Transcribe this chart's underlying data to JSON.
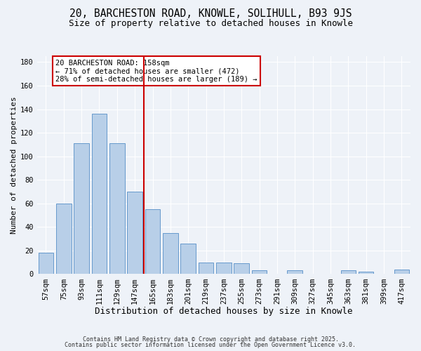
{
  "title": "20, BARCHESTON ROAD, KNOWLE, SOLIHULL, B93 9JS",
  "subtitle": "Size of property relative to detached houses in Knowle",
  "xlabel": "Distribution of detached houses by size in Knowle",
  "ylabel": "Number of detached properties",
  "categories": [
    "57sqm",
    "75sqm",
    "93sqm",
    "111sqm",
    "129sqm",
    "147sqm",
    "165sqm",
    "183sqm",
    "201sqm",
    "219sqm",
    "237sqm",
    "255sqm",
    "273sqm",
    "291sqm",
    "309sqm",
    "327sqm",
    "345sqm",
    "363sqm",
    "381sqm",
    "399sqm",
    "417sqm"
  ],
  "values": [
    18,
    60,
    111,
    136,
    111,
    70,
    55,
    35,
    26,
    10,
    10,
    9,
    3,
    0,
    3,
    0,
    0,
    3,
    2,
    0,
    4
  ],
  "bar_color": "#b8cfe8",
  "bar_edge_color": "#6699cc",
  "vline_x_index": 6,
  "vline_color": "#cc0000",
  "ylim": [
    0,
    185
  ],
  "yticks": [
    0,
    20,
    40,
    60,
    80,
    100,
    120,
    140,
    160,
    180
  ],
  "annotation_line1": "20 BARCHESTON ROAD: 158sqm",
  "annotation_line2": "← 71% of detached houses are smaller (472)",
  "annotation_line3": "28% of semi-detached houses are larger (189) →",
  "box_edge_color": "#cc0000",
  "background_color": "#eef2f8",
  "grid_color": "#ffffff",
  "footer_line1": "Contains HM Land Registry data © Crown copyright and database right 2025.",
  "footer_line2": "Contains public sector information licensed under the Open Government Licence v3.0.",
  "title_fontsize": 10.5,
  "subtitle_fontsize": 9,
  "xlabel_fontsize": 9,
  "ylabel_fontsize": 8,
  "tick_fontsize": 7.5,
  "annotation_fontsize": 7.5,
  "footer_fontsize": 6
}
